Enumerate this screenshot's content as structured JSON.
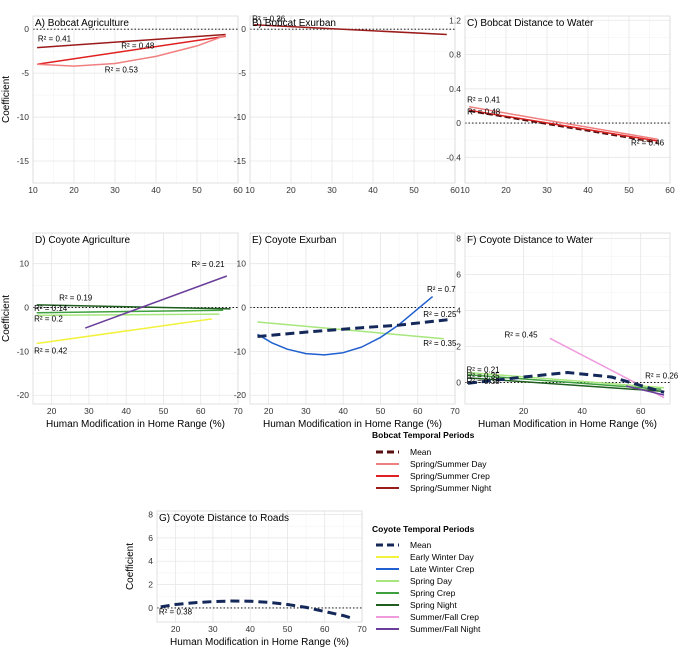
{
  "figure": {
    "xlabel": "Human Modification in Home Range (%)",
    "ylabel": "Coefficient"
  },
  "legend": {
    "bobcat": {
      "title": "Bobcat Temporal Periods",
      "entries": [
        {
          "label": "Mean",
          "color": "#5a0f0f",
          "dashed": true
        },
        {
          "label": "Spring/Summer Day",
          "color": "#f08080",
          "dashed": false
        },
        {
          "label": "Spring/Summer Crep",
          "color": "#e02020",
          "dashed": false
        },
        {
          "label": "Spring/Summer Night",
          "color": "#9b1b1b",
          "dashed": false
        }
      ]
    },
    "coyote": {
      "title": "Coyote Temporal Periods",
      "entries": [
        {
          "label": "Mean",
          "color": "#14285a",
          "dashed": true
        },
        {
          "label": "Early Winter Day",
          "color": "#f2f23c",
          "dashed": false
        },
        {
          "label": "Late Winter Crep",
          "color": "#1f5fd0",
          "dashed": false
        },
        {
          "label": "Spring Day",
          "color": "#a6e67c",
          "dashed": false
        },
        {
          "label": "Spring Crep",
          "color": "#3fa03f",
          "dashed": false
        },
        {
          "label": "Spring Night",
          "color": "#1e5e1e",
          "dashed": false
        },
        {
          "label": "Summer/Fall Crep",
          "color": "#f09ade",
          "dashed": false
        },
        {
          "label": "Summer/Fall Night",
          "color": "#6a3d9a",
          "dashed": false
        }
      ]
    }
  },
  "chart_data": [
    {
      "id": "A",
      "type": "line",
      "title": "A) Bobcat Agriculture",
      "xlim": [
        10,
        60
      ],
      "xticks": [
        10,
        20,
        30,
        40,
        50,
        60
      ],
      "ylim": [
        -17.5,
        1.5
      ],
      "yticks": [
        0,
        -5,
        -10,
        -15
      ],
      "show_xlabel": false,
      "show_ylabel": true,
      "series": [
        {
          "name": "Spring/Summer Night",
          "color": "#9b1b1b",
          "x": [
            11,
            57
          ],
          "y": [
            -2.1,
            -0.6
          ]
        },
        {
          "name": "Spring/Summer Crep",
          "color": "#e02020",
          "x": [
            11,
            57
          ],
          "y": [
            -4.0,
            -0.8
          ]
        },
        {
          "name": "Spring/Summer Day",
          "color": "#f08080",
          "x": [
            11,
            20,
            30,
            40,
            50,
            57
          ],
          "y": [
            -4.0,
            -4.2,
            -3.9,
            -3.1,
            -1.9,
            -0.7
          ]
        }
      ],
      "r2_labels": [
        {
          "text": "R² = 0.41",
          "x": 11.2,
          "y": -1.4
        },
        {
          "text": "R² = 0.48",
          "x": 31.5,
          "y": -2.2
        },
        {
          "text": "R² = 0.53",
          "x": 27.5,
          "y": -4.9
        }
      ]
    },
    {
      "id": "B",
      "type": "line",
      "title": "B) Bobcat Exurban",
      "xlim": [
        10,
        60
      ],
      "xticks": [
        10,
        20,
        30,
        40,
        50,
        60
      ],
      "ylim": [
        -17.5,
        1.5
      ],
      "yticks": [
        0,
        -5,
        -10,
        -15
      ],
      "show_xlabel": false,
      "show_ylabel": false,
      "series": [
        {
          "name": "Spring/Summer Night",
          "color": "#9b1b1b",
          "x": [
            11,
            58
          ],
          "y": [
            0.5,
            -0.6
          ]
        }
      ],
      "r2_labels": [
        {
          "text": "R² = 0.36",
          "x": 10.5,
          "y": 0.9
        }
      ]
    },
    {
      "id": "C",
      "type": "line",
      "title": "C) Bobcat Distance to Water",
      "xlim": [
        10,
        60
      ],
      "xticks": [
        10,
        20,
        30,
        40,
        50,
        60
      ],
      "ylim": [
        -0.7,
        1.25
      ],
      "yticks": [
        1.2,
        0.8,
        0.4,
        0.0,
        -0.4
      ],
      "show_xlabel": false,
      "show_ylabel": false,
      "series": [
        {
          "name": "Spring/Summer Day",
          "color": "#f08080",
          "x": [
            11,
            57
          ],
          "y": [
            0.19,
            -0.19
          ]
        },
        {
          "name": "Spring/Summer Crep",
          "color": "#e02020",
          "x": [
            11,
            57
          ],
          "y": [
            0.15,
            -0.21
          ]
        },
        {
          "name": "Mean",
          "color": "#5a0f0f",
          "dashed": true,
          "x": [
            11,
            57
          ],
          "y": [
            0.14,
            -0.23
          ]
        }
      ],
      "r2_labels": [
        {
          "text": "R² = 0.41",
          "x": 10.5,
          "y": 0.24
        },
        {
          "text": "R² = 0.48",
          "x": 10.5,
          "y": 0.1
        },
        {
          "text": "R² = 0.46",
          "x": 50.5,
          "y": -0.26
        }
      ]
    },
    {
      "id": "D",
      "type": "line",
      "title": "D) Coyote Agriculture",
      "xlim": [
        15,
        70
      ],
      "xticks": [
        20,
        30,
        40,
        50,
        60,
        70
      ],
      "ylim": [
        -22,
        17
      ],
      "yticks": [
        10,
        0,
        -10,
        -20
      ],
      "show_xlabel": true,
      "show_ylabel": true,
      "series": [
        {
          "name": "Spring Night",
          "color": "#1e5e1e",
          "x": [
            16,
            68
          ],
          "y": [
            0.6,
            -0.3
          ]
        },
        {
          "name": "Spring Crep",
          "color": "#3fa03f",
          "x": [
            16,
            66
          ],
          "y": [
            -1.2,
            -0.6
          ]
        },
        {
          "name": "Spring Day",
          "color": "#a6e67c",
          "x": [
            16,
            65
          ],
          "y": [
            -1.8,
            -1.5
          ]
        },
        {
          "name": "Early Winter Day",
          "color": "#f2f23c",
          "x": [
            16,
            63
          ],
          "y": [
            -8.2,
            -2.6
          ]
        },
        {
          "name": "Summer/Fall Night",
          "color": "#6a3d9a",
          "x": [
            29,
            67
          ],
          "y": [
            -4.7,
            7.2
          ]
        }
      ],
      "r2_labels": [
        {
          "text": "R² = 0.21",
          "x": 57.5,
          "y": 9.2
        },
        {
          "text": "R² = 0.19",
          "x": 22.0,
          "y": 1.6
        },
        {
          "text": "R² = 0.14",
          "x": 15.3,
          "y": -0.8
        },
        {
          "text": "R² = 0.2",
          "x": 15.3,
          "y": -3.2
        },
        {
          "text": "R² = 0.42",
          "x": 15.3,
          "y": -10.5
        }
      ]
    },
    {
      "id": "E",
      "type": "line",
      "title": "E) Coyote Exurban",
      "xlim": [
        15,
        70
      ],
      "xticks": [
        20,
        30,
        40,
        50,
        60,
        70
      ],
      "ylim": [
        -22,
        17
      ],
      "yticks": [
        10,
        0,
        -10,
        -20
      ],
      "show_xlabel": true,
      "show_ylabel": false,
      "series": [
        {
          "name": "Spring Day",
          "color": "#a6e67c",
          "x": [
            17,
            67
          ],
          "y": [
            -3.3,
            -7.1
          ]
        },
        {
          "name": "Late Winter Crep",
          "color": "#1f5fd0",
          "x": [
            17,
            21,
            25,
            30,
            35,
            40,
            45,
            50,
            55,
            60,
            64
          ],
          "y": [
            -6.1,
            -8.1,
            -9.5,
            -10.5,
            -10.8,
            -10.3,
            -9.0,
            -6.8,
            -3.9,
            -0.3,
            2.5
          ]
        },
        {
          "name": "Mean",
          "color": "#14285a",
          "dashed": true,
          "thick": true,
          "x": [
            17,
            30,
            45,
            55,
            68
          ],
          "y": [
            -6.6,
            -5.6,
            -4.6,
            -4.0,
            -2.8
          ]
        }
      ],
      "r2_labels": [
        {
          "text": "R² = 0.7",
          "x": 62.5,
          "y": 3.6
        },
        {
          "text": "R² = 0.25",
          "x": 61.5,
          "y": -2.2
        },
        {
          "text": "R² = 0.35",
          "x": 61.5,
          "y": -8.8
        }
      ]
    },
    {
      "id": "F",
      "type": "line",
      "title": "F) Coyote Distance to Water",
      "xlim": [
        0,
        70
      ],
      "xticks": [
        20,
        40,
        60
      ],
      "ylim": [
        -1.2,
        8.3
      ],
      "yticks": [
        8,
        6,
        4,
        2,
        0
      ],
      "show_xlabel": true,
      "show_ylabel": false,
      "series": [
        {
          "name": "Summer/Fall Crep",
          "color": "#f09ade",
          "x": [
            29,
            68
          ],
          "y": [
            2.45,
            -0.85
          ]
        },
        {
          "name": "Spring Day",
          "color": "#a6e67c",
          "x": [
            1,
            68
          ],
          "y": [
            0.55,
            -0.3
          ]
        },
        {
          "name": "Spring Crep",
          "color": "#3fa03f",
          "x": [
            1,
            67
          ],
          "y": [
            0.42,
            -0.38
          ]
        },
        {
          "name": "Spring Night",
          "color": "#1e5e1e",
          "x": [
            1,
            68
          ],
          "y": [
            0.25,
            -0.5
          ]
        },
        {
          "name": "Summer/Fall Night",
          "color": "#6a3d9a",
          "x": [
            55,
            68
          ],
          "y": [
            -0.2,
            -0.7
          ]
        },
        {
          "name": "Mean",
          "color": "#14285a",
          "dashed": true,
          "thick": true,
          "x": [
            1,
            20,
            35,
            50,
            68
          ],
          "y": [
            -0.05,
            0.3,
            0.55,
            0.3,
            -0.55
          ]
        }
      ],
      "r2_labels": [
        {
          "text": "R² = 0.45",
          "x": 13.5,
          "y": 2.5
        },
        {
          "text": "R² = 0.21",
          "x": 0.5,
          "y": 0.55
        },
        {
          "text": "R² = 0.35",
          "x": 0.5,
          "y": 0.22
        },
        {
          "text": "R² = 0.38",
          "x": 0.5,
          "y": -0.1
        },
        {
          "text": "R² = 0.26",
          "x": 61.5,
          "y": 0.22
        }
      ]
    },
    {
      "id": "G",
      "type": "line",
      "title": "G) Coyote Distance to Roads",
      "xlim": [
        15,
        70
      ],
      "xticks": [
        20,
        30,
        40,
        50,
        60,
        70
      ],
      "ylim": [
        -1.2,
        8.3
      ],
      "yticks": [
        8,
        6,
        4,
        2,
        0
      ],
      "show_xlabel": true,
      "show_ylabel": true,
      "series": [
        {
          "name": "Mean",
          "color": "#14285a",
          "dashed": true,
          "thick": true,
          "x": [
            16,
            20,
            25,
            30,
            35,
            40,
            45,
            50,
            55,
            60,
            65,
            67
          ],
          "y": [
            0.1,
            0.3,
            0.45,
            0.55,
            0.6,
            0.58,
            0.48,
            0.3,
            0.05,
            -0.3,
            -0.65,
            -0.85
          ]
        }
      ],
      "r2_labels": [
        {
          "text": "R² = 0.38",
          "x": 15.5,
          "y": -0.55
        }
      ]
    }
  ]
}
